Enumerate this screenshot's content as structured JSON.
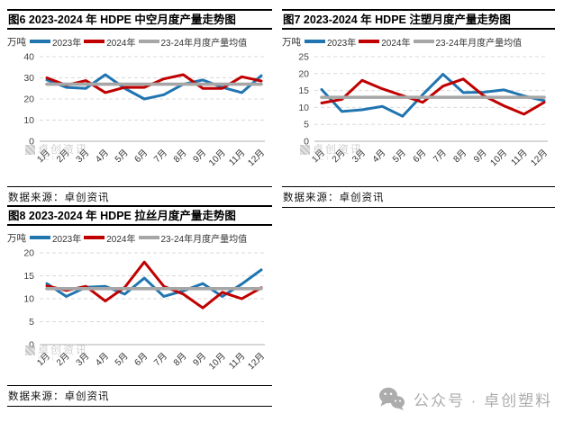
{
  "labels": {
    "source": "数据来源：卓创资讯"
  },
  "colors": {
    "series_2023": "#2075B0",
    "series_2024": "#C00000",
    "series_mean": "#A6A6A6",
    "grid": "#D9D9D9",
    "axis": "#BFBFBF",
    "title_text": "#000000",
    "watermark_gray": "#ACACAC"
  },
  "inner_watermark": {
    "text": "卓创资讯",
    "sub_text": "SCI"
  },
  "wechat_badge": {
    "icon": "wechat-icon",
    "text": "公众号 · 卓创塑料"
  },
  "chart_data": [
    {
      "type": "line",
      "title": "图6 2023-2024 年 HDPE 中空月度产量走势图",
      "unit_label": "万吨",
      "xlabel": "",
      "ylabel": "万吨",
      "categories": [
        "1月",
        "2月",
        "3月",
        "4月",
        "5月",
        "6月",
        "7月",
        "8月",
        "9月",
        "10月",
        "11月",
        "12月"
      ],
      "series": [
        {
          "name": "2023年",
          "color": "#2075B0",
          "values": [
            29,
            25.5,
            25,
            31.5,
            25,
            20,
            22,
            27,
            29,
            25.5,
            23,
            31
          ]
        },
        {
          "name": "2024年",
          "color": "#C00000",
          "values": [
            30,
            26.5,
            28.7,
            23,
            25.5,
            25.5,
            29.5,
            31.5,
            25,
            25,
            30.5,
            28.5
          ]
        },
        {
          "name": "23-24年月度产量均值",
          "color": "#A6A6A6",
          "values": [
            27,
            27,
            27,
            27,
            27,
            27,
            27,
            27,
            27,
            27,
            27,
            27
          ]
        }
      ],
      "ylim": [
        0,
        40
      ],
      "yticks": [
        0,
        10,
        20,
        30,
        40
      ],
      "grid": true,
      "legend_position": "top",
      "source": "数据来源：卓创资讯"
    },
    {
      "type": "line",
      "title": "图7 2023-2024 年 HDPE 注塑月度产量走势图",
      "unit_label": "万吨",
      "xlabel": "",
      "ylabel": "万吨",
      "categories": [
        "1月",
        "2月",
        "3月",
        "4月",
        "5月",
        "6月",
        "7月",
        "8月",
        "9月",
        "10月",
        "11月",
        "12月"
      ],
      "series": [
        {
          "name": "2023年",
          "color": "#2075B0",
          "values": [
            15.3,
            8.8,
            9.3,
            10.3,
            7.4,
            13.8,
            19.8,
            14.4,
            14.5,
            15.2,
            13.4,
            12
          ]
        },
        {
          "name": "2024年",
          "color": "#C00000",
          "values": [
            11.3,
            12.4,
            18,
            15.5,
            13.5,
            11.5,
            16.3,
            18.4,
            13.5,
            10.5,
            8,
            11.5
          ]
        },
        {
          "name": "23-24年月度产量均值",
          "color": "#A6A6A6",
          "values": [
            13,
            13,
            13,
            13,
            13,
            13,
            13,
            13,
            13,
            13,
            13,
            13
          ]
        }
      ],
      "ylim": [
        0,
        25
      ],
      "yticks": [
        0,
        5,
        10,
        15,
        20,
        25
      ],
      "grid": true,
      "legend_position": "top",
      "source": "数据来源：卓创资讯"
    },
    {
      "type": "line",
      "title": "图8 2023-2024 年 HDPE 拉丝月度产量走势图",
      "unit_label": "万吨",
      "xlabel": "",
      "ylabel": "万吨",
      "categories": [
        "1月",
        "2月",
        "3月",
        "4月",
        "5月",
        "6月",
        "7月",
        "8月",
        "9月",
        "10月",
        "11月",
        "12月"
      ],
      "series": [
        {
          "name": "2023年",
          "color": "#2075B0",
          "values": [
            13.3,
            10.5,
            12.5,
            12.7,
            11,
            14.5,
            10.5,
            11.7,
            13.3,
            10.5,
            13.2,
            16.3
          ]
        },
        {
          "name": "2024年",
          "color": "#C00000",
          "values": [
            12.8,
            11.8,
            12.7,
            9.5,
            12.5,
            18,
            12.7,
            11,
            8,
            11.4,
            10,
            12.4
          ]
        },
        {
          "name": "23-24年月度产量均值",
          "color": "#A6A6A6",
          "values": [
            12.2,
            12.2,
            12.2,
            12.2,
            12.2,
            12.2,
            12.2,
            12.2,
            12.2,
            12.2,
            12.2,
            12.2
          ]
        }
      ],
      "ylim": [
        0,
        20
      ],
      "yticks": [
        0,
        5,
        10,
        15,
        20
      ],
      "grid": true,
      "legend_position": "top",
      "source": "数据来源：卓创资讯"
    }
  ]
}
